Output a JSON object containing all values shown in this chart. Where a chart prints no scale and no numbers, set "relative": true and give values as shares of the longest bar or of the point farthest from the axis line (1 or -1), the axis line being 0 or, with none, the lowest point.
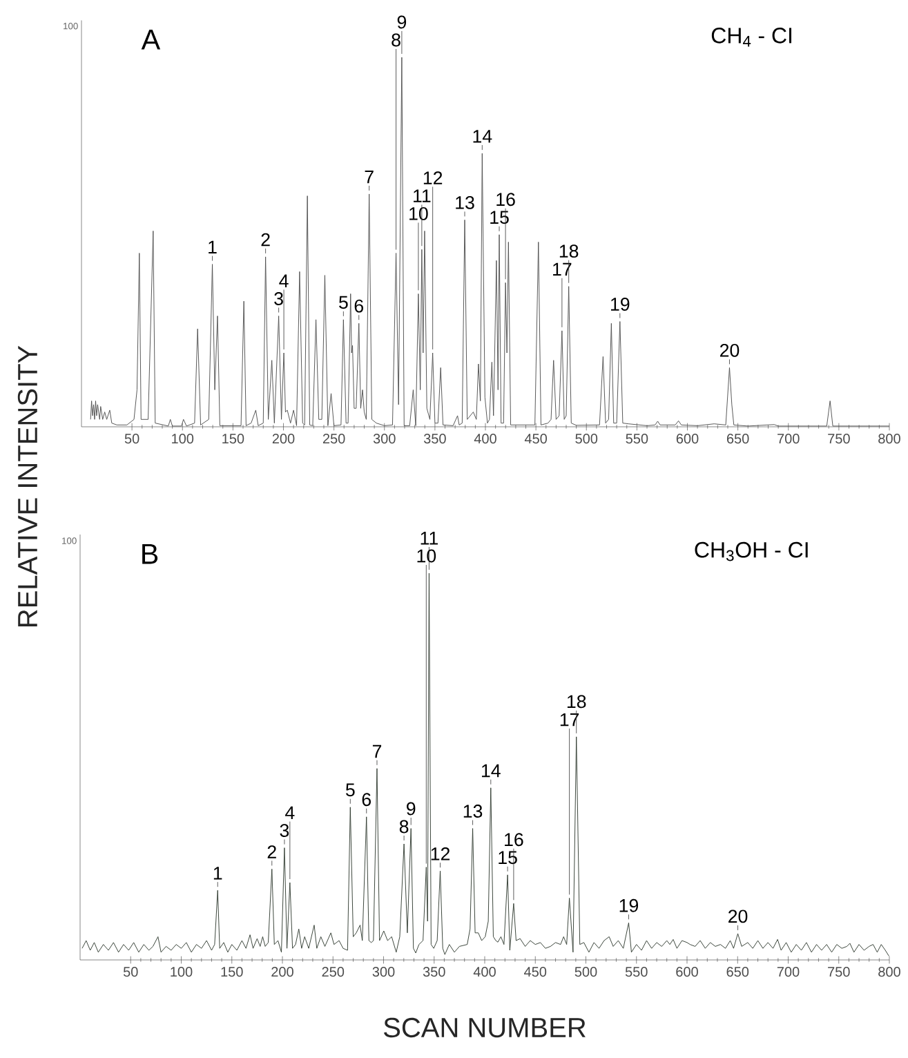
{
  "chart_data": [
    {
      "type": "line",
      "title": "A",
      "subtitle": "CH$_{4}$ - CI",
      "ylabel": "RELATIVE INTENSITY",
      "relative": true,
      "color": "#4d4d4d",
      "xlim": [
        0,
        800
      ],
      "xticks": [
        50,
        100,
        150,
        200,
        250,
        300,
        350,
        400,
        450,
        500,
        550,
        600,
        650,
        700,
        750,
        800
      ],
      "x": [
        9,
        10,
        11,
        12,
        13,
        14,
        15,
        16,
        18,
        19,
        21,
        23,
        25,
        28,
        30,
        35,
        45,
        52,
        55,
        57.3,
        59,
        66,
        71,
        73,
        86,
        88,
        90,
        99,
        101,
        104,
        112,
        115,
        118,
        126,
        129.6,
        132,
        134.7,
        137,
        158,
        160.8,
        163,
        168,
        172.6,
        175,
        180,
        182.3,
        185,
        188.5,
        191,
        195.3,
        198,
        200.4,
        202,
        203.8,
        207,
        210,
        213,
        216,
        219,
        221,
        223.7,
        226,
        229,
        232.2,
        235,
        238,
        241,
        244,
        247.2,
        250,
        257,
        259.4,
        262,
        264,
        266.5,
        267.5,
        268.4,
        270,
        272,
        274.7,
        276.5,
        278.3,
        280,
        282,
        284.9,
        287.5,
        292,
        300,
        308,
        311.5,
        314,
        317.2,
        319.5,
        325,
        328.5,
        331,
        333.6,
        335.5,
        337,
        338.3,
        339.8,
        342,
        345,
        347.8,
        350,
        353,
        355.7,
        358,
        368,
        372.4,
        374,
        377,
        379.5,
        382,
        388,
        391,
        393.1,
        395,
        396.8,
        399.5,
        402,
        404,
        406.4,
        408,
        410.9,
        412.5,
        413.7,
        415.5,
        418,
        419.9,
        421.3,
        422.8,
        425,
        430,
        449,
        452.5,
        455,
        462,
        465,
        467.5,
        470,
        473,
        475.8,
        478,
        480,
        482.5,
        485,
        490,
        513,
        516.5,
        519,
        522,
        524.7,
        527,
        530,
        533.2,
        536,
        541.7,
        560,
        568,
        570.6,
        573,
        588,
        591.2,
        594,
        610,
        626.5,
        638,
        641.7,
        644,
        646,
        660,
        686,
        690,
        738,
        741.3,
        744,
        800
      ],
      "values": [
        0.02,
        0.07,
        0.03,
        0.06,
        0.02,
        0.07,
        0.03,
        0.06,
        0.02,
        0.055,
        0.02,
        0.04,
        0.02,
        0.045,
        0.01,
        0.005,
        0.005,
        0.02,
        0.1,
        0.47,
        0.02,
        0.02,
        0.53,
        0.01,
        0.002,
        0.02,
        0.002,
        0.002,
        0.02,
        0.002,
        0.01,
        0.265,
        0.005,
        0.02,
        0.44,
        0.1,
        0.3,
        0.003,
        0.003,
        0.34,
        0.003,
        0.01,
        0.045,
        0.003,
        0.01,
        0.46,
        0.02,
        0.18,
        0.01,
        0.3,
        0.02,
        0.2,
        0.04,
        0.045,
        0.01,
        0.045,
        0.003,
        0.42,
        0.01,
        0.005,
        0.625,
        0.005,
        0.003,
        0.29,
        0.02,
        0.02,
        0.41,
        0.003,
        0.09,
        0.003,
        0.005,
        0.29,
        0.01,
        0.01,
        0.36,
        0.2,
        0.22,
        0.05,
        0.05,
        0.28,
        0.05,
        0.1,
        0.04,
        0.02,
        0.63,
        0.02,
        0.01,
        0.003,
        0.005,
        0.47,
        0.06,
        1.0,
        0.003,
        0.003,
        0.1,
        0.003,
        0.36,
        0.1,
        0.48,
        0.2,
        0.53,
        0.05,
        0.02,
        0.2,
        0.01,
        0.01,
        0.16,
        0.005,
        0.003,
        0.03,
        0.005,
        0.01,
        0.56,
        0.02,
        0.04,
        0.02,
        0.17,
        0.07,
        0.74,
        0.08,
        0.01,
        0.02,
        0.175,
        0.03,
        0.45,
        0.1,
        0.52,
        0.01,
        0.01,
        0.39,
        0.2,
        0.5,
        0.005,
        0.005,
        0.005,
        0.5,
        0.005,
        0.01,
        0.02,
        0.18,
        0.02,
        0.03,
        0.26,
        0.02,
        0.03,
        0.38,
        0.01,
        0.004,
        0.005,
        0.19,
        0.01,
        0.02,
        0.28,
        0.01,
        0.01,
        0.285,
        0.01,
        0.008,
        0.003,
        0.005,
        0.015,
        0.005,
        0.005,
        0.016,
        0.005,
        0.003,
        0.008,
        0.005,
        0.16,
        0.06,
        0.005,
        0.002,
        0.006,
        0.002,
        0.002,
        0.07,
        0.002,
        0.002
      ],
      "annotations": [
        "100",
        {
          "text": "1",
          "x": 129.6,
          "y": 0.44
        },
        {
          "text": "2",
          "x": 182.3,
          "y": 0.46
        },
        {
          "text": "3",
          "x": 195.3,
          "y": 0.3
        },
        {
          "text": "4",
          "x": 200.4,
          "y": 0.2
        },
        {
          "text": "5",
          "x": 259.4,
          "y": 0.29
        },
        {
          "text": "6",
          "x": 274.7,
          "y": 0.28
        },
        {
          "text": "7",
          "x": 284.9,
          "y": 0.63
        },
        {
          "text": "8",
          "x": 311.5,
          "y": 0.47
        },
        {
          "text": "9",
          "x": 317.2,
          "y": 1.0
        },
        {
          "text": "10",
          "x": 333.6,
          "y": 0.36
        },
        {
          "text": "11",
          "x": 337,
          "y": 0.48
        },
        {
          "text": "12",
          "x": 347.8,
          "y": 0.2
        },
        {
          "text": "13",
          "x": 379.5,
          "y": 0.56
        },
        {
          "text": "14",
          "x": 396.8,
          "y": 0.74
        },
        {
          "text": "15",
          "x": 413.7,
          "y": 0.52
        },
        {
          "text": "16",
          "x": 419.9,
          "y": 0.39
        },
        {
          "text": "17",
          "x": 475.8,
          "y": 0.26
        },
        {
          "text": "18",
          "x": 482.5,
          "y": 0.38
        },
        {
          "text": "19",
          "x": 533.2,
          "y": 0.285
        },
        {
          "text": "20",
          "x": 641.7,
          "y": 0.16
        }
      ]
    },
    {
      "type": "line",
      "title": "B",
      "subtitle": "CH$_{3}$OH - CI",
      "xlabel": "SCAN NUMBER",
      "relative": true,
      "color": "#2f3a2f",
      "xlim": [
        0,
        800
      ],
      "xticks": [
        50,
        100,
        150,
        200,
        250,
        300,
        350,
        400,
        450,
        500,
        550,
        600,
        650,
        700,
        750,
        800
      ],
      "x": [
        2,
        6,
        10,
        14,
        18,
        23,
        28,
        33,
        38,
        43,
        48,
        53,
        58,
        63,
        68,
        72,
        77,
        80,
        85,
        90,
        95,
        100,
        105,
        110,
        115,
        120,
        125,
        130,
        133,
        136,
        138,
        142,
        146,
        150,
        155,
        160,
        164,
        168,
        171,
        175,
        178,
        180.5,
        183,
        186,
        189.6,
        192,
        195.6,
        199,
        202,
        204.5,
        207.4,
        210,
        213,
        216.2,
        219,
        222,
        226,
        231.4,
        234,
        238,
        242,
        247.9,
        251,
        256,
        260,
        264.4,
        267.1,
        270,
        273,
        276.8,
        279,
        283.1,
        285.5,
        287.8,
        290,
        293.5,
        296,
        300.2,
        304,
        308,
        312.5,
        316,
        320.2,
        323.5,
        327.1,
        329.5,
        331.8,
        335,
        339,
        342.2,
        343.5,
        345,
        347,
        349.6,
        353,
        356,
        358.5,
        360.6,
        365,
        370,
        375,
        382.7,
        385.5,
        388.1,
        390.5,
        393.6,
        397,
        400.5,
        403.5,
        406,
        408.5,
        411,
        413,
        416,
        419,
        422.6,
        424.8,
        428.6,
        431,
        435,
        440,
        445,
        450,
        455,
        460,
        465,
        470,
        475,
        478,
        481,
        483.7,
        487.3,
        490.6,
        494,
        498,
        503,
        508,
        513,
        518,
        523,
        527,
        532,
        537,
        542.3,
        545,
        550,
        555,
        560,
        565,
        570,
        575,
        580,
        583,
        586.3,
        590,
        595,
        600,
        603,
        608,
        613,
        618,
        623,
        628,
        633,
        638,
        642.7,
        646,
        650.2,
        654,
        660,
        665,
        670,
        675,
        680,
        685,
        689.5,
        693,
        698,
        703,
        708,
        713,
        718,
        723,
        728,
        733,
        738,
        743,
        748,
        753,
        758,
        761,
        765,
        770,
        775,
        780,
        783.9,
        788,
        792,
        796,
        799.6
      ],
      "values": [
        0.03,
        0.05,
        0.025,
        0.045,
        0.02,
        0.04,
        0.025,
        0.045,
        0.02,
        0.04,
        0.025,
        0.045,
        0.02,
        0.04,
        0.025,
        0.035,
        0.06,
        0.02,
        0.035,
        0.025,
        0.04,
        0.03,
        0.045,
        0.02,
        0.04,
        0.03,
        0.05,
        0.025,
        0.04,
        0.18,
        0.03,
        0.045,
        0.02,
        0.04,
        0.025,
        0.05,
        0.03,
        0.065,
        0.03,
        0.055,
        0.035,
        0.06,
        0.035,
        0.045,
        0.235,
        0.04,
        0.05,
        0.02,
        0.29,
        0.03,
        0.2,
        0.03,
        0.04,
        0.08,
        0.03,
        0.06,
        0.03,
        0.09,
        0.03,
        0.06,
        0.035,
        0.07,
        0.04,
        0.05,
        0.03,
        0.025,
        0.395,
        0.06,
        0.07,
        0.09,
        0.05,
        0.37,
        0.05,
        0.045,
        0.05,
        0.495,
        0.05,
        0.075,
        0.05,
        0.06,
        0.02,
        0.06,
        0.3,
        0.07,
        0.34,
        0.03,
        0.018,
        0.04,
        0.05,
        0.24,
        0.1,
        1.0,
        0.04,
        0.03,
        0.05,
        0.23,
        0.03,
        0.014,
        0.04,
        0.02,
        0.035,
        0.04,
        0.08,
        0.34,
        0.07,
        0.07,
        0.05,
        0.06,
        0.1,
        0.445,
        0.06,
        0.05,
        0.046,
        0.06,
        0.04,
        0.22,
        0.025,
        0.146,
        0.05,
        0.055,
        0.035,
        0.05,
        0.04,
        0.045,
        0.03,
        0.035,
        0.045,
        0.04,
        0.06,
        0.04,
        0.16,
        0.02,
        0.577,
        0.04,
        0.045,
        0.02,
        0.045,
        0.03,
        0.05,
        0.06,
        0.035,
        0.05,
        0.03,
        0.096,
        0.02,
        0.04,
        0.025,
        0.05,
        0.03,
        0.045,
        0.035,
        0.05,
        0.04,
        0.053,
        0.03,
        0.05,
        0.045,
        0.04,
        0.035,
        0.05,
        0.03,
        0.045,
        0.035,
        0.04,
        0.03,
        0.05,
        0.03,
        0.068,
        0.035,
        0.045,
        0.03,
        0.05,
        0.03,
        0.045,
        0.03,
        0.053,
        0.025,
        0.045,
        0.02,
        0.04,
        0.025,
        0.045,
        0.02,
        0.04,
        0.025,
        0.04,
        0.02,
        0.04,
        0.03,
        0.035,
        0.043,
        0.02,
        0.04,
        0.025,
        0.035,
        0.04,
        0.02,
        0.04,
        0.025,
        0.01
      ],
      "annotations": [
        "100",
        {
          "text": "1",
          "x": 136,
          "y": 0.18
        },
        {
          "text": "2",
          "x": 189.6,
          "y": 0.235
        },
        {
          "text": "3",
          "x": 202,
          "y": 0.29
        },
        {
          "text": "4",
          "x": 207.4,
          "y": 0.2
        },
        {
          "text": "5",
          "x": 267.1,
          "y": 0.395
        },
        {
          "text": "6",
          "x": 283.1,
          "y": 0.37
        },
        {
          "text": "7",
          "x": 293.5,
          "y": 0.495
        },
        {
          "text": "8",
          "x": 320.2,
          "y": 0.3
        },
        {
          "text": "9",
          "x": 327.1,
          "y": 0.34
        },
        {
          "text": "10",
          "x": 342.2,
          "y": 0.24
        },
        {
          "text": "11",
          "x": 345,
          "y": 1.0
        },
        {
          "text": "12",
          "x": 356,
          "y": 0.23
        },
        {
          "text": "13",
          "x": 388.1,
          "y": 0.34
        },
        {
          "text": "14",
          "x": 406,
          "y": 0.445
        },
        {
          "text": "15",
          "x": 422.6,
          "y": 0.22
        },
        {
          "text": "16",
          "x": 428.6,
          "y": 0.146
        },
        {
          "text": "17",
          "x": 483.7,
          "y": 0.16
        },
        {
          "text": "18",
          "x": 490.6,
          "y": 0.577
        },
        {
          "text": "19",
          "x": 542.3,
          "y": 0.096
        },
        {
          "text": "20",
          "x": 650.2,
          "y": 0.068
        }
      ]
    }
  ]
}
